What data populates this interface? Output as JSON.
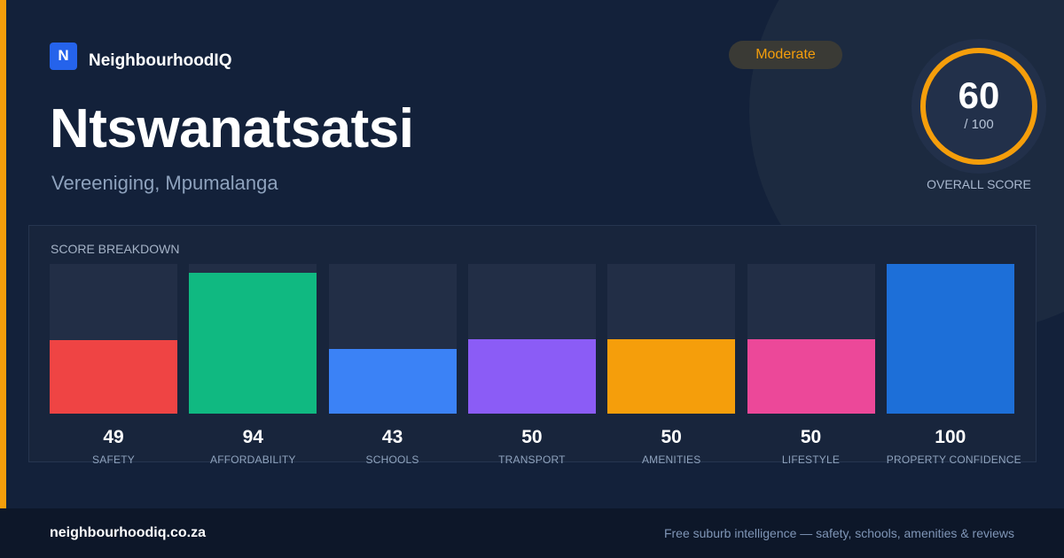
{
  "brand": {
    "logo_letter": "N",
    "name": "NeighbourhoodIQ"
  },
  "suburb": {
    "name": "Ntswanatsatsi",
    "location": "Vereeniging, Mpumalanga"
  },
  "rating": {
    "badge": "Moderate",
    "badge_color": "#f59e0b"
  },
  "overall": {
    "score": "60",
    "max": "/ 100",
    "label": "OVERALL SCORE",
    "fraction": 0.6,
    "ring_color": "#f59e0b"
  },
  "breakdown": {
    "title": "SCORE BREAKDOWN",
    "items": [
      {
        "value": "49",
        "label": "SAFETY",
        "color": "#ef4444"
      },
      {
        "value": "94",
        "label": "AFFORDABILITY",
        "color": "#10b981"
      },
      {
        "value": "43",
        "label": "SCHOOLS",
        "color": "#3b82f6"
      },
      {
        "value": "50",
        "label": "TRANSPORT",
        "color": "#8b5cf6"
      },
      {
        "value": "50",
        "label": "AMENITIES",
        "color": "#f59e0b"
      },
      {
        "value": "50",
        "label": "LIFESTYLE",
        "color": "#ec4899"
      },
      {
        "value": "100",
        "label": "PROPERTY CONFIDENCE",
        "color": "#1d6fd8"
      }
    ]
  },
  "footer": {
    "url": "neighbourhoodiq.co.za",
    "tagline": "Free suburb intelligence — safety, schools, amenities & reviews"
  }
}
